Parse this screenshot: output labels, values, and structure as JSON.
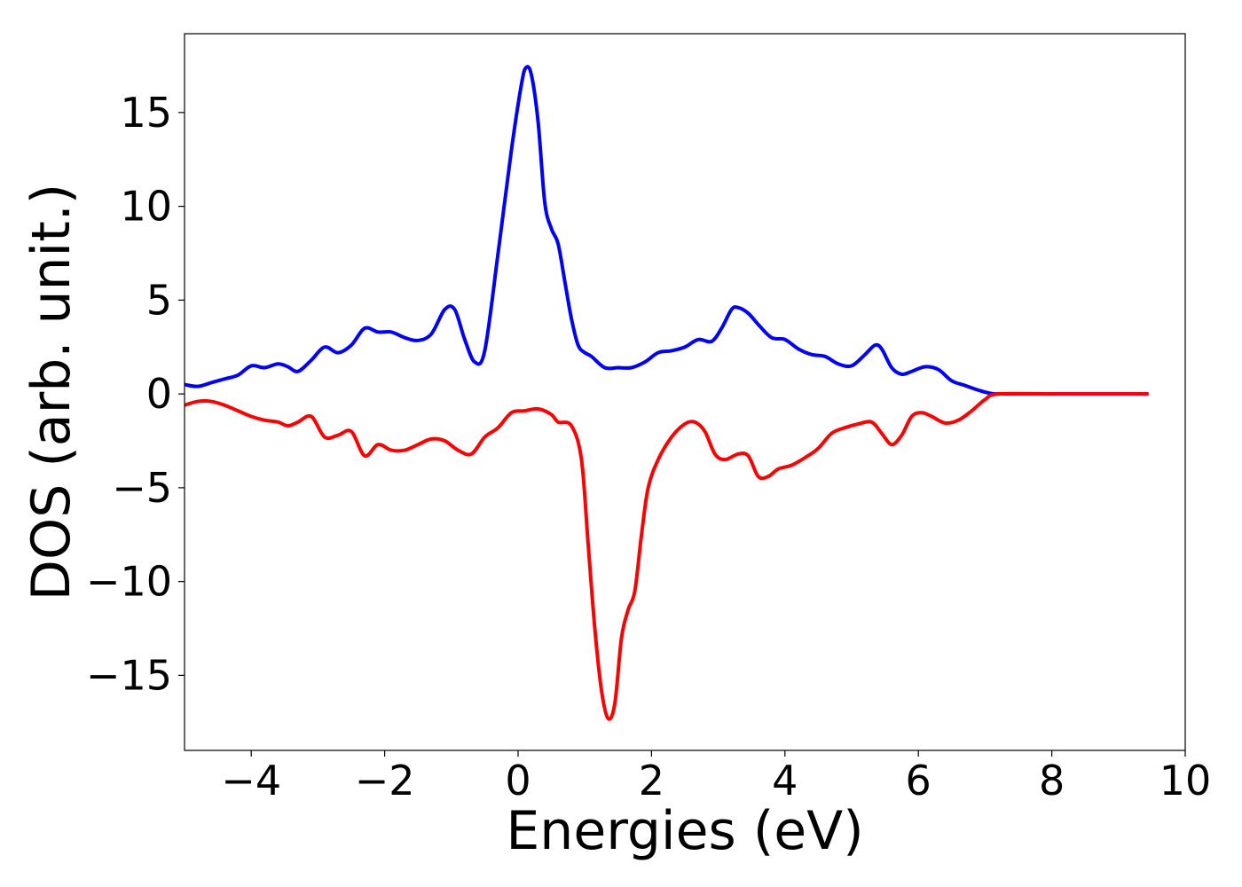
{
  "chart_data": {
    "type": "line",
    "title": "",
    "xlabel": "Energies (eV)",
    "ylabel": "DOS (arb. unit.)",
    "xlim": [
      -5,
      10
    ],
    "ylim": [
      -19,
      19.2
    ],
    "grid": false,
    "legend": "none",
    "x_ticks": [
      -4,
      -2,
      0,
      2,
      4,
      6,
      8,
      10
    ],
    "x_tick_labels": [
      "−4",
      "−2",
      "0",
      "2",
      "4",
      "6",
      "8",
      "10"
    ],
    "y_ticks": [
      15,
      10,
      5,
      0,
      -5,
      -10,
      -15
    ],
    "y_tick_labels": [
      "15",
      "10",
      "5",
      "0",
      "−5",
      "−10",
      "−15"
    ],
    "series": [
      {
        "color": "#0000ff",
        "points": [
          [
            -5.0,
            0.5
          ],
          [
            -4.8,
            0.4
          ],
          [
            -4.6,
            0.6
          ],
          [
            -4.4,
            0.8
          ],
          [
            -4.2,
            1.0
          ],
          [
            -4.0,
            1.5
          ],
          [
            -3.8,
            1.4
          ],
          [
            -3.6,
            1.6
          ],
          [
            -3.45,
            1.45
          ],
          [
            -3.3,
            1.2
          ],
          [
            -3.1,
            1.8
          ],
          [
            -2.9,
            2.5
          ],
          [
            -2.7,
            2.2
          ],
          [
            -2.5,
            2.6
          ],
          [
            -2.3,
            3.5
          ],
          [
            -2.1,
            3.3
          ],
          [
            -1.9,
            3.3
          ],
          [
            -1.7,
            3.0
          ],
          [
            -1.5,
            2.85
          ],
          [
            -1.3,
            3.2
          ],
          [
            -1.1,
            4.5
          ],
          [
            -0.95,
            4.5
          ],
          [
            -0.8,
            2.9
          ],
          [
            -0.65,
            1.7
          ],
          [
            -0.5,
            2.3
          ],
          [
            -0.3,
            7.5
          ],
          [
            -0.1,
            13.0
          ],
          [
            0.05,
            16.5
          ],
          [
            0.12,
            17.4
          ],
          [
            0.2,
            17.0
          ],
          [
            0.3,
            14.5
          ],
          [
            0.4,
            10.2
          ],
          [
            0.5,
            8.8
          ],
          [
            0.6,
            8.0
          ],
          [
            0.7,
            6.0
          ],
          [
            0.8,
            4.0
          ],
          [
            0.9,
            2.6
          ],
          [
            1.0,
            2.2
          ],
          [
            1.1,
            2.0
          ],
          [
            1.3,
            1.4
          ],
          [
            1.5,
            1.4
          ],
          [
            1.7,
            1.4
          ],
          [
            1.9,
            1.7
          ],
          [
            2.1,
            2.2
          ],
          [
            2.3,
            2.3
          ],
          [
            2.5,
            2.5
          ],
          [
            2.7,
            2.9
          ],
          [
            2.9,
            2.8
          ],
          [
            3.05,
            3.5
          ],
          [
            3.2,
            4.5
          ],
          [
            3.3,
            4.6
          ],
          [
            3.45,
            4.3
          ],
          [
            3.6,
            3.7
          ],
          [
            3.8,
            3.0
          ],
          [
            4.0,
            2.9
          ],
          [
            4.2,
            2.4
          ],
          [
            4.4,
            2.1
          ],
          [
            4.6,
            2.0
          ],
          [
            4.8,
            1.6
          ],
          [
            5.0,
            1.5
          ],
          [
            5.2,
            2.1
          ],
          [
            5.35,
            2.6
          ],
          [
            5.45,
            2.4
          ],
          [
            5.6,
            1.4
          ],
          [
            5.75,
            1.05
          ],
          [
            5.9,
            1.2
          ],
          [
            6.1,
            1.45
          ],
          [
            6.3,
            1.3
          ],
          [
            6.5,
            0.7
          ],
          [
            6.7,
            0.45
          ],
          [
            6.9,
            0.2
          ],
          [
            7.1,
            0.02
          ],
          [
            7.3,
            0.0
          ],
          [
            8.0,
            0.0
          ],
          [
            9.0,
            0.0
          ],
          [
            9.45,
            0.0
          ]
        ]
      },
      {
        "color": "#ff0000",
        "points": [
          [
            -5.0,
            -0.6
          ],
          [
            -4.8,
            -0.4
          ],
          [
            -4.6,
            -0.4
          ],
          [
            -4.4,
            -0.6
          ],
          [
            -4.2,
            -0.9
          ],
          [
            -4.0,
            -1.2
          ],
          [
            -3.8,
            -1.4
          ],
          [
            -3.6,
            -1.5
          ],
          [
            -3.45,
            -1.7
          ],
          [
            -3.3,
            -1.5
          ],
          [
            -3.1,
            -1.2
          ],
          [
            -2.9,
            -2.3
          ],
          [
            -2.7,
            -2.2
          ],
          [
            -2.5,
            -2.0
          ],
          [
            -2.3,
            -3.3
          ],
          [
            -2.1,
            -2.7
          ],
          [
            -1.9,
            -3.0
          ],
          [
            -1.7,
            -3.0
          ],
          [
            -1.5,
            -2.7
          ],
          [
            -1.3,
            -2.4
          ],
          [
            -1.1,
            -2.5
          ],
          [
            -0.9,
            -3.0
          ],
          [
            -0.7,
            -3.2
          ],
          [
            -0.5,
            -2.3
          ],
          [
            -0.3,
            -1.8
          ],
          [
            -0.1,
            -1.0
          ],
          [
            0.1,
            -0.9
          ],
          [
            0.3,
            -0.8
          ],
          [
            0.5,
            -1.1
          ],
          [
            0.6,
            -1.5
          ],
          [
            0.8,
            -1.7
          ],
          [
            0.95,
            -3.5
          ],
          [
            1.05,
            -8.0
          ],
          [
            1.15,
            -12.5
          ],
          [
            1.25,
            -15.8
          ],
          [
            1.35,
            -17.3
          ],
          [
            1.45,
            -16.5
          ],
          [
            1.55,
            -13.0
          ],
          [
            1.65,
            -11.5
          ],
          [
            1.75,
            -10.5
          ],
          [
            1.85,
            -7.5
          ],
          [
            1.95,
            -5.0
          ],
          [
            2.1,
            -3.5
          ],
          [
            2.3,
            -2.3
          ],
          [
            2.5,
            -1.6
          ],
          [
            2.65,
            -1.5
          ],
          [
            2.8,
            -2.0
          ],
          [
            2.95,
            -3.2
          ],
          [
            3.1,
            -3.5
          ],
          [
            3.3,
            -3.2
          ],
          [
            3.45,
            -3.3
          ],
          [
            3.6,
            -4.4
          ],
          [
            3.75,
            -4.4
          ],
          [
            3.9,
            -4.0
          ],
          [
            4.1,
            -3.8
          ],
          [
            4.3,
            -3.4
          ],
          [
            4.5,
            -2.9
          ],
          [
            4.7,
            -2.1
          ],
          [
            4.9,
            -1.8
          ],
          [
            5.1,
            -1.6
          ],
          [
            5.3,
            -1.5
          ],
          [
            5.45,
            -2.1
          ],
          [
            5.6,
            -2.7
          ],
          [
            5.75,
            -2.2
          ],
          [
            5.9,
            -1.2
          ],
          [
            6.05,
            -1.0
          ],
          [
            6.2,
            -1.2
          ],
          [
            6.4,
            -1.55
          ],
          [
            6.6,
            -1.4
          ],
          [
            6.8,
            -0.9
          ],
          [
            7.0,
            -0.3
          ],
          [
            7.2,
            0.0
          ],
          [
            8.0,
            0.0
          ],
          [
            9.0,
            0.0
          ],
          [
            9.45,
            0.0
          ]
        ]
      }
    ]
  }
}
